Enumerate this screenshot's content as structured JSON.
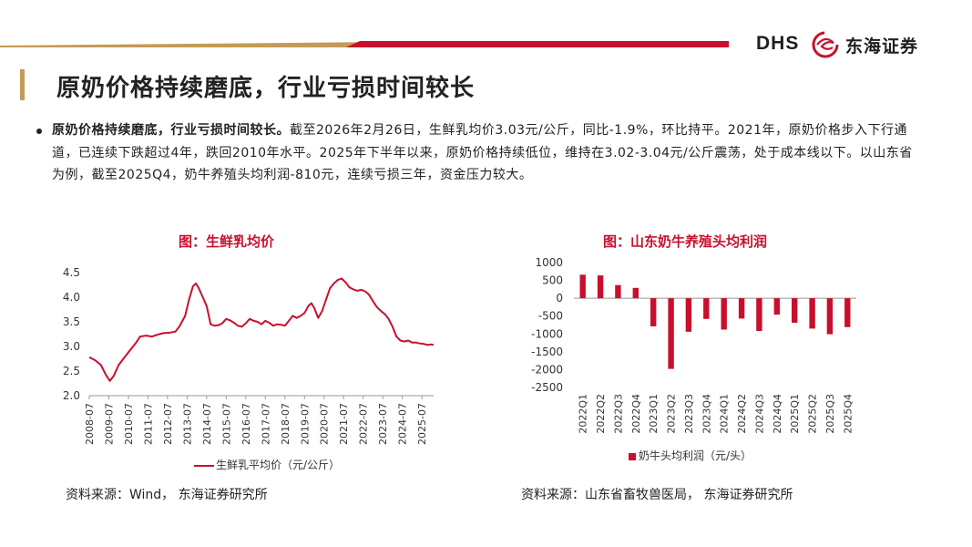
{
  "header": {
    "brand_latin": "DHS",
    "brand_cn": "东海证券",
    "bar_colors": [
      "#c8102e",
      "#c59a57"
    ]
  },
  "page_title": "原奶价格持续磨底，行业亏损时间较长",
  "summary": {
    "lead": "原奶价格持续磨底，行业亏损时间较长。",
    "body": "截至2026年2月26日，生鲜乳均价3.03元/公斤，同比-1.9%，环比持平。2021年，原奶价格步入下行通道，已连续下跌超过4年，跌回2010年水平。2025年下半年以来，原奶价格持续低位，维持在3.02-3.04元/公斤震荡，处于成本线以下。以山东省为例，截至2025Q4，奶牛养殖头均利润-810元，连续亏损三年，资金压力较大。"
  },
  "chart_data": [
    {
      "type": "line",
      "title": "图：生鲜乳均价",
      "color": "#c8102e",
      "ylim": [
        2.0,
        4.5
      ],
      "yticks": [
        "2.0",
        "2.5",
        "3.0",
        "3.5",
        "4.0",
        "4.5"
      ],
      "xlim": [
        2008.5,
        2026.1
      ],
      "xtick_labels": [
        "2008-07",
        "2009-07",
        "2010-07",
        "2011-07",
        "2012-07",
        "2013-07",
        "2014-07",
        "2015-07",
        "2016-07",
        "2017-07",
        "2018-07",
        "2019-07",
        "2020-07",
        "2021-07",
        "2022-07",
        "2023-07",
        "2024-07",
        "2025-07"
      ],
      "series": [
        {
          "name": "生鲜乳平均价（元/公斤）",
          "x": [
            2008.5,
            2008.8,
            2009.1,
            2009.35,
            2009.55,
            2009.75,
            2010.0,
            2010.3,
            2010.6,
            2010.9,
            2011.1,
            2011.4,
            2011.7,
            2012.0,
            2012.3,
            2012.6,
            2012.9,
            2013.1,
            2013.4,
            2013.6,
            2013.8,
            2013.95,
            2014.1,
            2014.3,
            2014.5,
            2014.7,
            2014.9,
            2015.1,
            2015.3,
            2015.5,
            2015.7,
            2015.9,
            2016.1,
            2016.3,
            2016.5,
            2016.7,
            2016.9,
            2017.1,
            2017.3,
            2017.5,
            2017.7,
            2017.9,
            2018.1,
            2018.3,
            2018.5,
            2018.7,
            2018.9,
            2019.1,
            2019.3,
            2019.5,
            2019.7,
            2019.85,
            2020.0,
            2020.2,
            2020.4,
            2020.6,
            2020.8,
            2021.0,
            2021.2,
            2021.4,
            2021.6,
            2021.8,
            2022.0,
            2022.2,
            2022.4,
            2022.6,
            2022.8,
            2023.0,
            2023.2,
            2023.4,
            2023.6,
            2023.8,
            2024.0,
            2024.2,
            2024.4,
            2024.6,
            2024.8,
            2025.0,
            2025.2,
            2025.4,
            2025.6,
            2025.8,
            2026.0,
            2026.1
          ],
          "y": [
            2.78,
            2.72,
            2.62,
            2.42,
            2.3,
            2.4,
            2.62,
            2.78,
            2.93,
            3.08,
            3.2,
            3.22,
            3.2,
            3.24,
            3.27,
            3.28,
            3.3,
            3.4,
            3.62,
            3.95,
            4.22,
            4.28,
            4.18,
            4.0,
            3.82,
            3.45,
            3.42,
            3.43,
            3.47,
            3.56,
            3.53,
            3.48,
            3.42,
            3.4,
            3.47,
            3.56,
            3.52,
            3.5,
            3.45,
            3.52,
            3.48,
            3.42,
            3.45,
            3.44,
            3.42,
            3.52,
            3.62,
            3.58,
            3.62,
            3.68,
            3.82,
            3.88,
            3.78,
            3.58,
            3.72,
            3.95,
            4.18,
            4.28,
            4.35,
            4.38,
            4.3,
            4.2,
            4.16,
            4.13,
            4.15,
            4.12,
            4.05,
            3.92,
            3.8,
            3.72,
            3.66,
            3.56,
            3.4,
            3.2,
            3.12,
            3.1,
            3.12,
            3.08,
            3.08,
            3.06,
            3.05,
            3.03,
            3.04,
            3.03
          ]
        }
      ]
    },
    {
      "type": "bar",
      "title": "图：山东奶牛养殖头均利润",
      "color": "#c8102e",
      "ylim": [
        -2500,
        1000
      ],
      "yticks": [
        "1000",
        "500",
        "0",
        "-500",
        "-1000",
        "-1500",
        "-2000",
        "-2500"
      ],
      "categories": [
        "2022Q1",
        "2022Q2",
        "2022Q3",
        "2022Q4",
        "2023Q1",
        "2023Q2",
        "2023Q3",
        "2023Q4",
        "2024Q1",
        "2024Q2",
        "2024Q3",
        "2024Q4",
        "2025Q1",
        "2025Q2",
        "2025Q3",
        "2025Q4"
      ],
      "series": [
        {
          "name": "奶牛头均利润（元/头）",
          "values": [
            660,
            640,
            370,
            290,
            -790,
            -1980,
            -940,
            -580,
            -880,
            -570,
            -920,
            -460,
            -690,
            -850,
            -1010,
            -810
          ]
        }
      ]
    }
  ],
  "sources": {
    "left": "资料来源：Wind，  东海证券研究所",
    "right": "资料来源：山东省畜牧兽医局，  东海证券研究所"
  }
}
